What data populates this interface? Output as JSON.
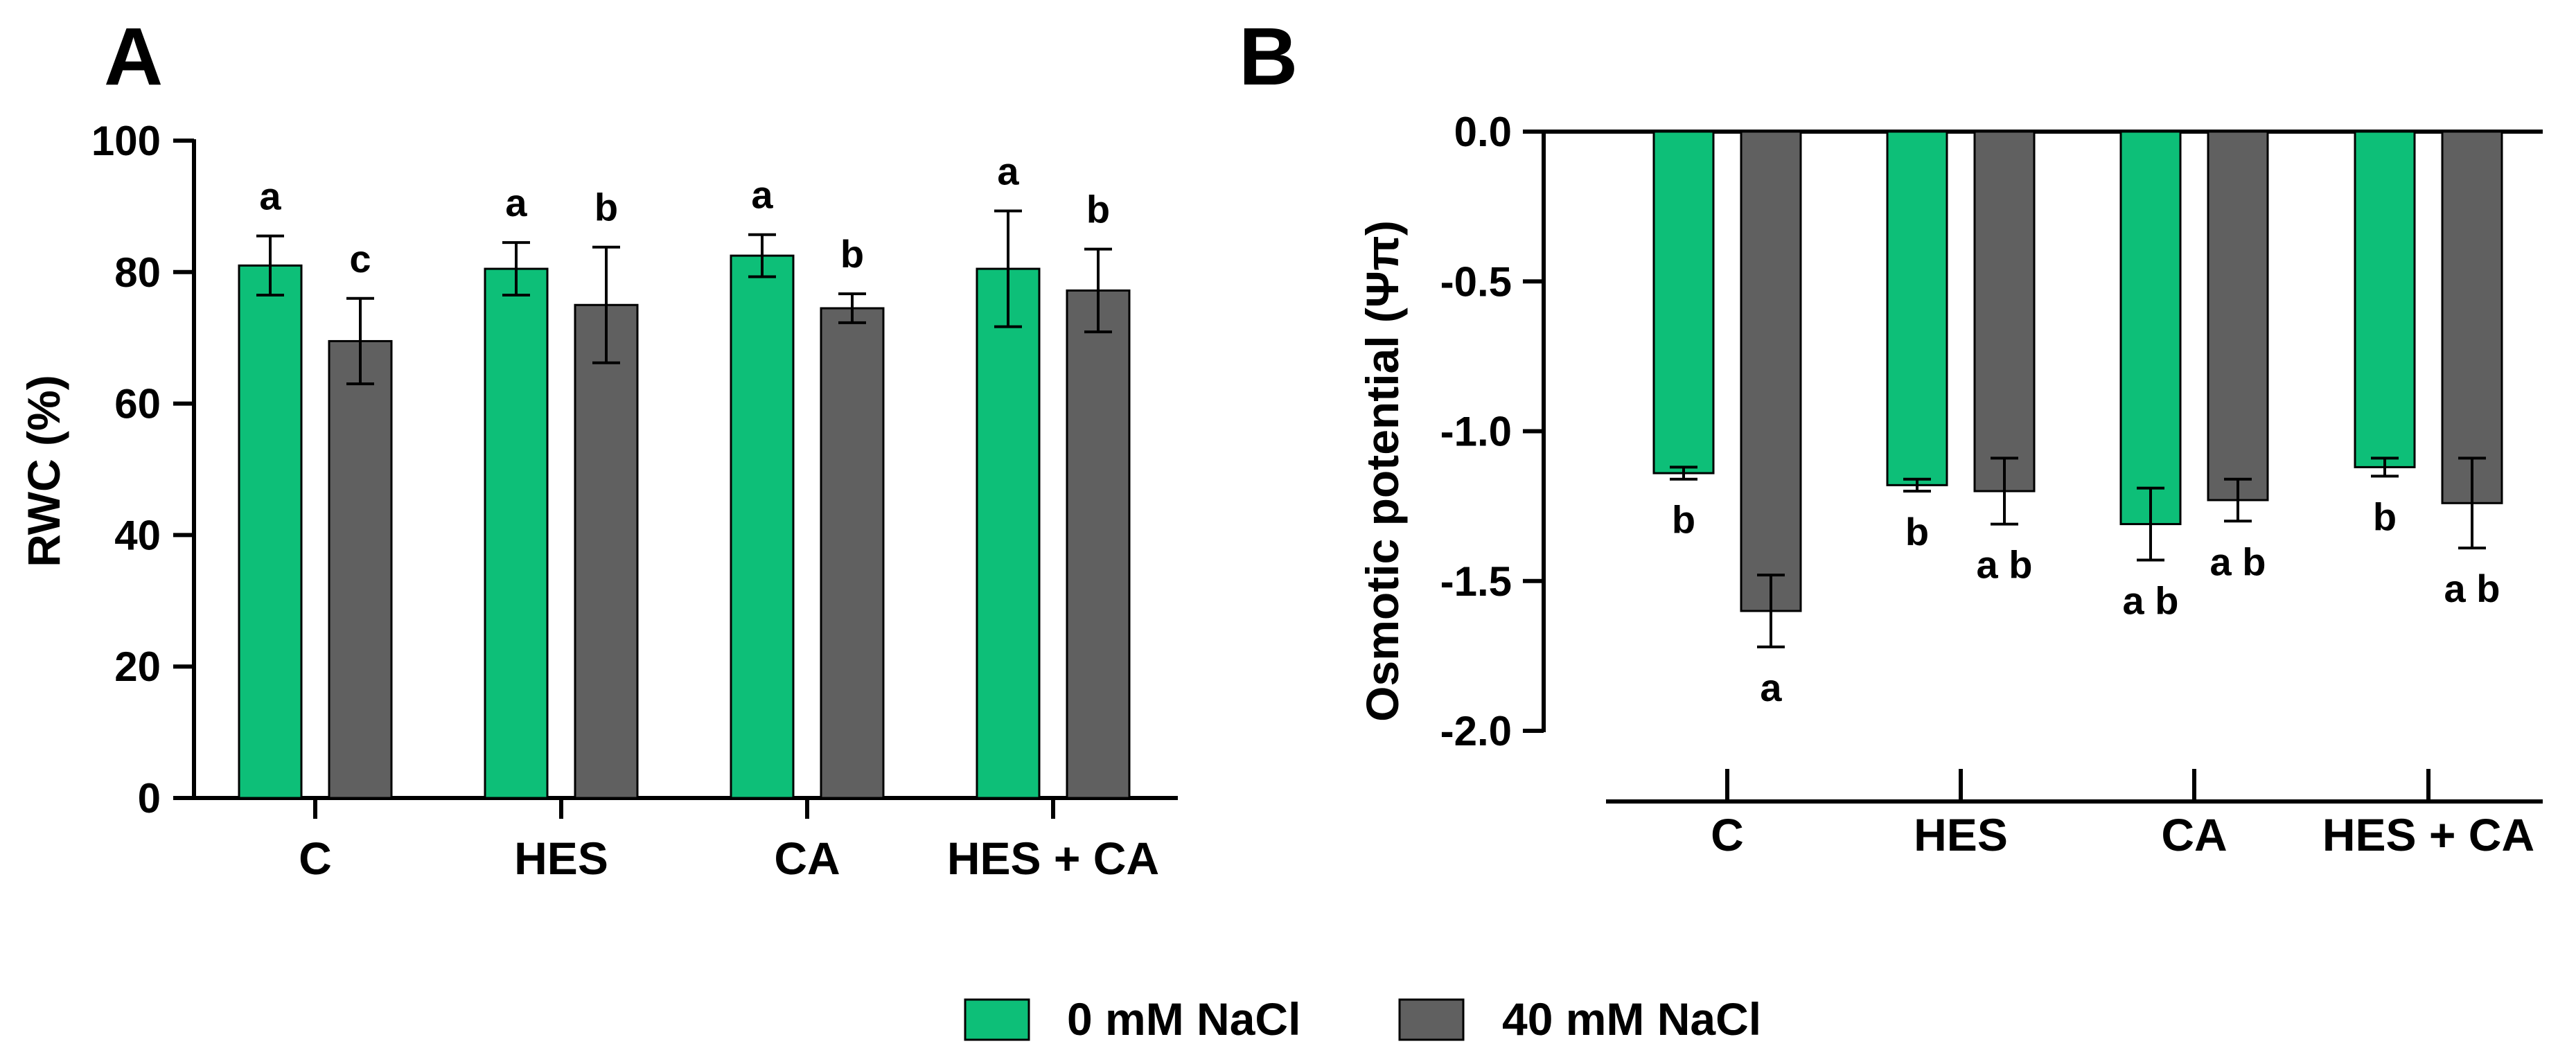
{
  "colors": {
    "series0": "#0dbf78",
    "series1": "#606060",
    "axis": "#000000"
  },
  "legend": {
    "items": [
      "0 mM NaCl",
      "40 mM NaCl"
    ],
    "placement": "bottom-center"
  },
  "chart_data": [
    {
      "type": "bar",
      "panel_label": "A",
      "title": "",
      "ylabel": "RWC (%)",
      "xlabel": "",
      "ylim": [
        0,
        100
      ],
      "yticks": [
        0,
        20,
        40,
        60,
        80,
        100
      ],
      "ytick_labels": [
        "0",
        "20",
        "40",
        "60",
        "80",
        "100"
      ],
      "grid": false,
      "categories": [
        "C",
        "HES",
        "CA",
        "HES + CA"
      ],
      "series": [
        {
          "name": "0 mM NaCl",
          "values": [
            81.0,
            80.5,
            82.5,
            80.5
          ],
          "errors": [
            4.5,
            4.0,
            3.2,
            8.8
          ],
          "labels": [
            "a",
            "a",
            "a",
            "a"
          ]
        },
        {
          "name": "40 mM NaCl",
          "values": [
            69.5,
            75.0,
            74.5,
            77.2
          ],
          "errors": [
            6.5,
            8.8,
            2.2,
            6.3
          ],
          "labels": [
            "c",
            "b",
            "b",
            "b"
          ]
        }
      ]
    },
    {
      "type": "bar",
      "panel_label": "B",
      "title": "",
      "ylabel": "Osmotic potential (Ψπ)",
      "xlabel": "",
      "ylim": [
        -2.0,
        0.0
      ],
      "yticks": [
        0.0,
        -0.5,
        -1.0,
        -1.5,
        -2.0
      ],
      "ytick_labels": [
        "0.0",
        "-0.5",
        "-1.0",
        "-1.5",
        "-2.0"
      ],
      "grid": false,
      "categories": [
        "C",
        "HES",
        "CA",
        "HES + CA"
      ],
      "series": [
        {
          "name": "0 mM NaCl",
          "values": [
            -1.14,
            -1.18,
            -1.31,
            -1.12
          ],
          "errors": [
            0.02,
            0.02,
            0.12,
            0.03
          ],
          "labels": [
            "b",
            "b",
            "ab",
            "b"
          ]
        },
        {
          "name": "40 mM NaCl",
          "values": [
            -1.6,
            -1.2,
            -1.23,
            -1.24
          ],
          "errors": [
            0.12,
            0.11,
            0.07,
            0.15
          ],
          "labels": [
            "a",
            "ab",
            "ab",
            "ab"
          ]
        }
      ]
    }
  ]
}
